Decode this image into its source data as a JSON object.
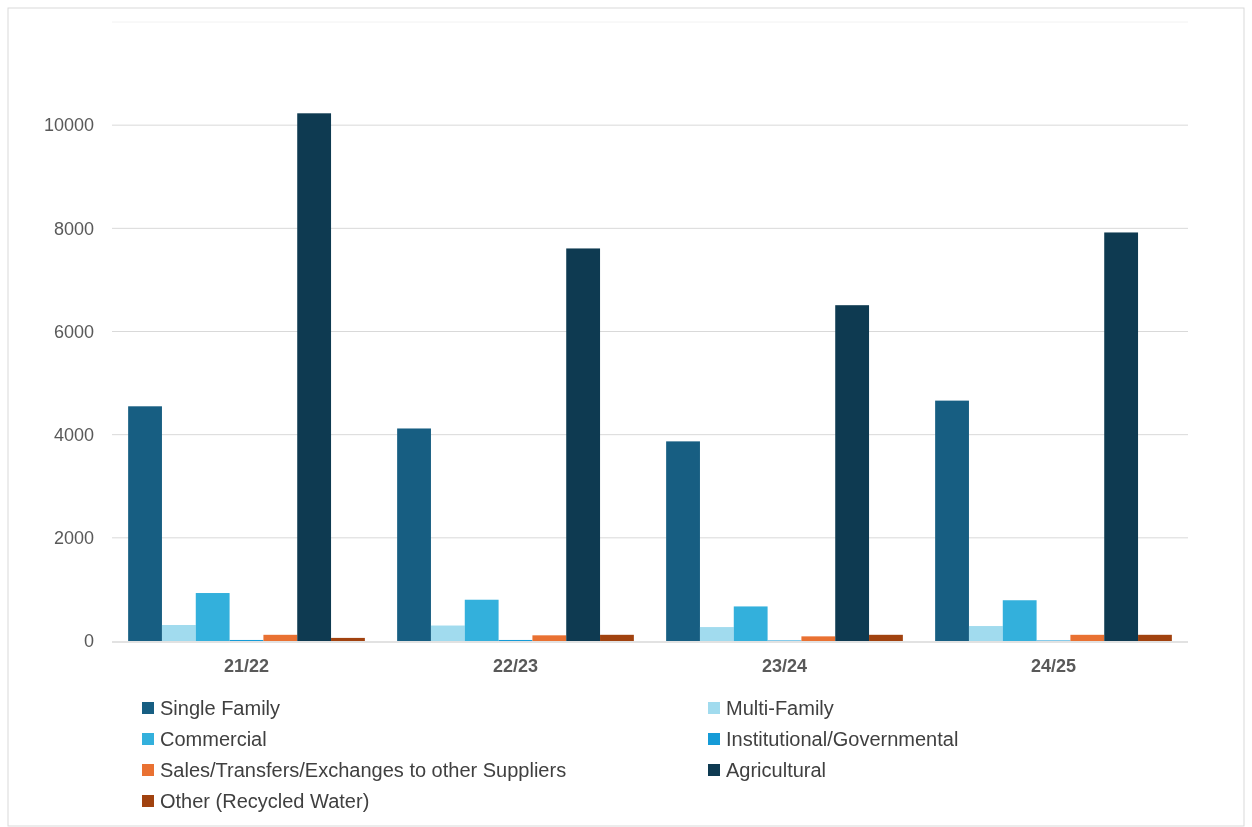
{
  "chart_data": {
    "type": "bar",
    "categories": [
      "21/22",
      "22/23",
      "23/24",
      "24/25"
    ],
    "series": [
      {
        "name": "Single Family",
        "color": "#175e82",
        "values": [
          4550,
          4120,
          3870,
          4660
        ]
      },
      {
        "name": "Multi-Family",
        "color": "#a1dbee",
        "values": [
          310,
          300,
          270,
          290
        ]
      },
      {
        "name": "Commercial",
        "color": "#33b0dc",
        "values": [
          930,
          800,
          670,
          790
        ]
      },
      {
        "name": "Institutional/Governmental",
        "color": "#159bd7",
        "values": [
          20,
          20,
          10,
          10
        ]
      },
      {
        "name": "Sales/Transfers/Exchanges to other Suppliers",
        "color": "#e97132",
        "values": [
          120,
          110,
          90,
          120
        ]
      },
      {
        "name": "Agricultural",
        "color": "#0e3a51",
        "values": [
          10230,
          7610,
          6510,
          7920
        ]
      },
      {
        "name": "Other (Recycled Water)",
        "color": "#a1420f",
        "values": [
          60,
          120,
          120,
          120
        ]
      }
    ],
    "ylim": [
      0,
      12000
    ],
    "yticks": [
      0,
      2000,
      4000,
      6000,
      8000,
      10000
    ],
    "grid": "y",
    "legend": "bottom"
  }
}
